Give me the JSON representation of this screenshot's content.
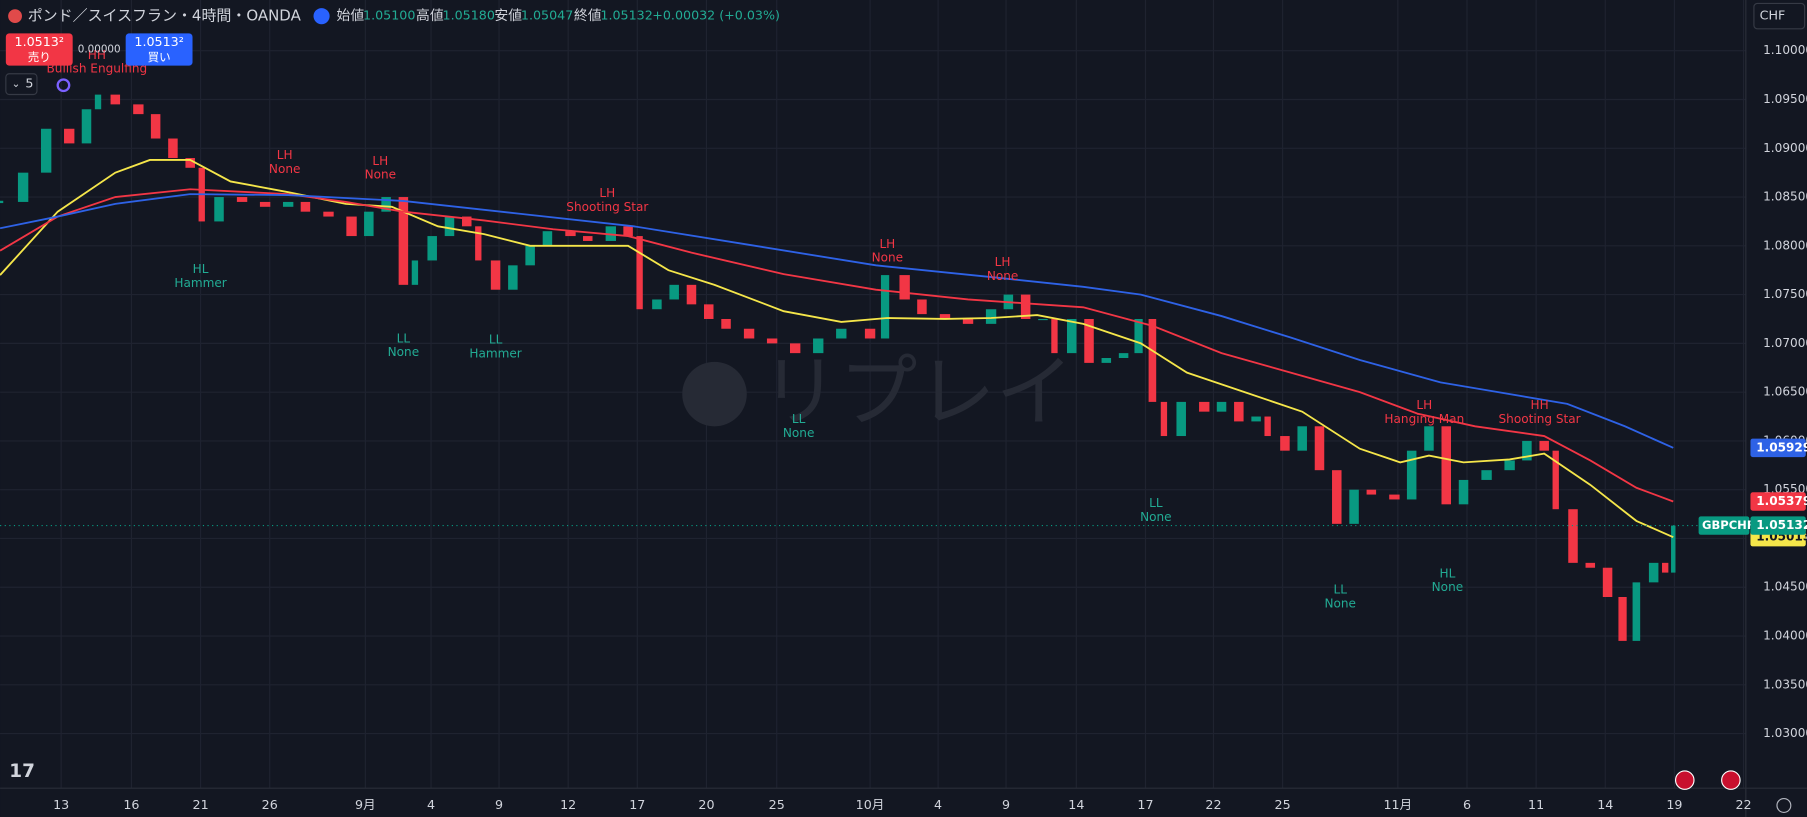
{
  "header": {
    "title": "ポンド／スイスフラン・4時間・OANDA",
    "ohlc": [
      {
        "label": "始値",
        "value": "1.05100"
      },
      {
        "label": "高値",
        "value": "1.05180"
      },
      {
        "label": "安値",
        "value": "1.05047"
      },
      {
        "label": "終値",
        "value": "1.05132"
      }
    ],
    "change": "+0.00032 (+0.03%)"
  },
  "order_panel": {
    "sell_price": "1.0513²",
    "sell_label": "売り",
    "spread": "0.00000",
    "buy_price": "1.0513²",
    "buy_label": "買い"
  },
  "indicator_count": "5",
  "currency": "CHF",
  "watermark": "リプレイ",
  "chart_data": {
    "type": "candlestick",
    "symbol": "GBPCHF",
    "x": [
      0,
      2,
      4,
      6,
      7.5,
      8.5,
      10,
      12,
      13.5,
      15,
      16.5,
      17.5,
      19,
      21,
      23,
      25,
      26.5,
      28.5,
      30.5,
      32,
      33.5,
      35,
      36,
      37.5,
      39,
      40.5,
      41.5,
      43,
      44.5,
      46,
      47.5,
      49.5,
      51,
      53,
      54.5,
      55.5,
      57,
      58.5,
      60,
      61.5,
      63,
      65,
      67,
      69,
      71,
      73,
      75.5,
      76.8,
      78.5,
      80,
      82,
      84,
      86,
      87.5,
      89,
      90.5,
      91.5,
      93,
      94.5,
      96,
      97.5,
      98.8,
      100,
      101,
      102.5,
      104.5,
      106,
      107.5,
      109,
      110,
      111.5,
      113,
      114.5,
      116,
      117.5,
      119,
      121,
      122.5,
      124,
      125.5,
      127,
      129,
      131,
      132.5,
      134,
      135,
      136.5,
      138,
      139.5,
      140.8,
      142,
      143.5,
      144.5,
      145.2
    ],
    "close": [
      1.0845,
      1.0875,
      1.092,
      1.0905,
      1.094,
      1.0955,
      1.0945,
      1.0935,
      1.091,
      1.089,
      1.088,
      1.0825,
      1.085,
      1.0845,
      1.084,
      1.0845,
      1.0835,
      1.083,
      1.081,
      1.0835,
      1.085,
      1.076,
      1.0785,
      1.081,
      1.083,
      1.082,
      1.0785,
      1.0755,
      1.078,
      1.08,
      1.0815,
      1.081,
      1.0805,
      1.082,
      1.081,
      1.0735,
      1.0745,
      1.076,
      1.074,
      1.0725,
      1.0715,
      1.0705,
      1.07,
      1.069,
      1.0705,
      1.0715,
      1.0705,
      1.077,
      1.0745,
      1.073,
      1.0725,
      1.072,
      1.0735,
      1.075,
      1.0725,
      1.0725,
      1.069,
      1.0725,
      1.068,
      1.0685,
      1.069,
      1.0725,
      1.064,
      1.0605,
      1.064,
      1.063,
      1.064,
      1.062,
      1.0625,
      1.0605,
      1.059,
      1.0615,
      1.057,
      1.0515,
      1.055,
      1.0545,
      1.054,
      1.059,
      1.0615,
      1.0535,
      1.056,
      1.057,
      1.058,
      1.06,
      1.059,
      1.053,
      1.0475,
      1.047,
      1.044,
      1.0395,
      1.0455,
      1.0475,
      1.0465,
      1.05132
    ],
    "lines": [
      {
        "color": "#f5e64a",
        "x": [
          0,
          5,
          10,
          13,
          16.5,
          20,
          25,
          30,
          34,
          38,
          42,
          46,
          50,
          54.5,
          58,
          62,
          68,
          73,
          77,
          82,
          86,
          90,
          94,
          99,
          103,
          108,
          113,
          118,
          121.5,
          124,
          127,
          131,
          134,
          138,
          142,
          145.2
        ],
        "values": [
          1.077,
          1.0835,
          1.0875,
          1.0888,
          1.0888,
          1.0866,
          1.0855,
          1.0843,
          1.084,
          1.082,
          1.0812,
          1.08,
          1.08,
          1.08,
          1.0775,
          1.076,
          1.0733,
          1.0722,
          1.0726,
          1.0725,
          1.0726,
          1.0729,
          1.072,
          1.07,
          1.067,
          1.065,
          1.063,
          1.0592,
          1.0578,
          1.0585,
          1.0578,
          1.0581,
          1.0587,
          1.0555,
          1.0518,
          1.05013
        ]
      },
      {
        "color": "#f23645",
        "x": [
          0,
          5,
          10,
          16.5,
          25,
          30,
          35,
          42,
          48,
          54.5,
          60,
          68,
          76,
          84,
          94,
          100,
          106,
          112,
          118,
          123,
          128,
          134,
          138,
          142,
          145.2
        ],
        "values": [
          1.0795,
          1.083,
          1.085,
          1.0858,
          1.0853,
          1.0845,
          1.0835,
          1.0826,
          1.0817,
          1.081,
          1.0793,
          1.0771,
          1.0755,
          1.0745,
          1.0737,
          1.0718,
          1.069,
          1.067,
          1.065,
          1.0628,
          1.0615,
          1.0605,
          1.058,
          1.0552,
          1.05379
        ]
      },
      {
        "color": "#2e62e6",
        "x": [
          0,
          5,
          10,
          16.5,
          25,
          35,
          45,
          55,
          65,
          76,
          86,
          94,
          99,
          106,
          112,
          118,
          125,
          130,
          136,
          141,
          145.2
        ],
        "values": [
          1.0818,
          1.083,
          1.0843,
          1.0853,
          1.0852,
          1.0846,
          1.0833,
          1.082,
          1.0801,
          1.078,
          1.0768,
          1.0758,
          1.075,
          1.0728,
          1.0706,
          1.0683,
          1.066,
          1.065,
          1.0638,
          1.0615,
          1.05929
        ]
      }
    ],
    "annotations": [
      {
        "lines": [
          "HH",
          "Bullish Engulfing"
        ],
        "color": "#f23645"
      },
      {
        "lines": [
          "LH",
          "None"
        ],
        "color": "#f23645"
      },
      {
        "lines": [
          "LH",
          "None"
        ],
        "color": "#f23645"
      },
      {
        "lines": [
          "LH",
          "Shooting Star"
        ],
        "color": "#f23645"
      },
      {
        "lines": [
          "HL",
          "Hammer"
        ],
        "color": "#22ab94"
      },
      {
        "lines": [
          "LL",
          "None"
        ],
        "color": "#22ab94"
      },
      {
        "lines": [
          "LL",
          "Hammer"
        ],
        "color": "#22ab94"
      },
      {
        "lines": [
          "LL",
          "None"
        ],
        "color": "#22ab94"
      },
      {
        "lines": [
          "LH",
          "None"
        ],
        "color": "#f23645"
      },
      {
        "lines": [
          "LH",
          "None"
        ],
        "color": "#f23645"
      },
      {
        "lines": [
          "LL",
          "None"
        ],
        "color": "#22ab94"
      },
      {
        "lines": [
          "LH",
          "Hanging Man"
        ],
        "color": "#f23645"
      },
      {
        "lines": [
          "HH",
          "Shooting Star"
        ],
        "color": "#f23645"
      },
      {
        "lines": [
          "LL",
          "None"
        ],
        "color": "#22ab94"
      },
      {
        "lines": [
          "HL",
          "None"
        ],
        "color": "#22ab94"
      }
    ],
    "xlim": [
      0,
      151.5
    ],
    "ylim": [
      1.0244,
      1.1052
    ],
    "xticks": [
      {
        "value": 5.3,
        "label": "13"
      },
      {
        "value": 11.4,
        "label": "16"
      },
      {
        "value": 17.4,
        "label": "21"
      },
      {
        "value": 23.4,
        "label": "26"
      },
      {
        "value": 31.7,
        "label": "9月"
      },
      {
        "value": 37.4,
        "label": "4"
      },
      {
        "value": 43.3,
        "label": "9"
      },
      {
        "value": 49.3,
        "label": "12"
      },
      {
        "value": 55.3,
        "label": "17"
      },
      {
        "value": 61.3,
        "label": "20"
      },
      {
        "value": 67.4,
        "label": "25"
      },
      {
        "value": 75.5,
        "label": "10月"
      },
      {
        "value": 81.4,
        "label": "4"
      },
      {
        "value": 87.3,
        "label": "9"
      },
      {
        "value": 93.4,
        "label": "14"
      },
      {
        "value": 99.4,
        "label": "17"
      },
      {
        "value": 105.3,
        "label": "22"
      },
      {
        "value": 111.3,
        "label": "25"
      },
      {
        "value": 121.3,
        "label": "11月"
      },
      {
        "value": 127.3,
        "label": "6"
      },
      {
        "value": 133.3,
        "label": "11"
      },
      {
        "value": 139.3,
        "label": "14"
      },
      {
        "value": 145.3,
        "label": "19"
      },
      {
        "value": 151.3,
        "label": "22"
      }
    ],
    "yticks": [
      {
        "value": 1.03,
        "label": "1.03000"
      },
      {
        "value": 1.035,
        "label": "1.03500"
      },
      {
        "value": 1.04,
        "label": "1.04000"
      },
      {
        "value": 1.045,
        "label": "1.04500"
      },
      {
        "value": 1.05,
        "label": "1.05000"
      },
      {
        "value": 1.055,
        "label": "1.05500"
      },
      {
        "value": 1.06,
        "label": "1.06000"
      },
      {
        "value": 1.065,
        "label": "1.06500"
      },
      {
        "value": 1.07,
        "label": "1.07000"
      },
      {
        "value": 1.075,
        "label": "1.07500"
      },
      {
        "value": 1.08,
        "label": "1.08000"
      },
      {
        "value": 1.085,
        "label": "1.08500"
      },
      {
        "value": 1.09,
        "label": "1.09000"
      },
      {
        "value": 1.095,
        "label": "1.09500"
      },
      {
        "value": 1.1,
        "label": "1.10000"
      }
    ],
    "grid": true,
    "up_color": "#089981",
    "down_color": "#f23645"
  }
}
